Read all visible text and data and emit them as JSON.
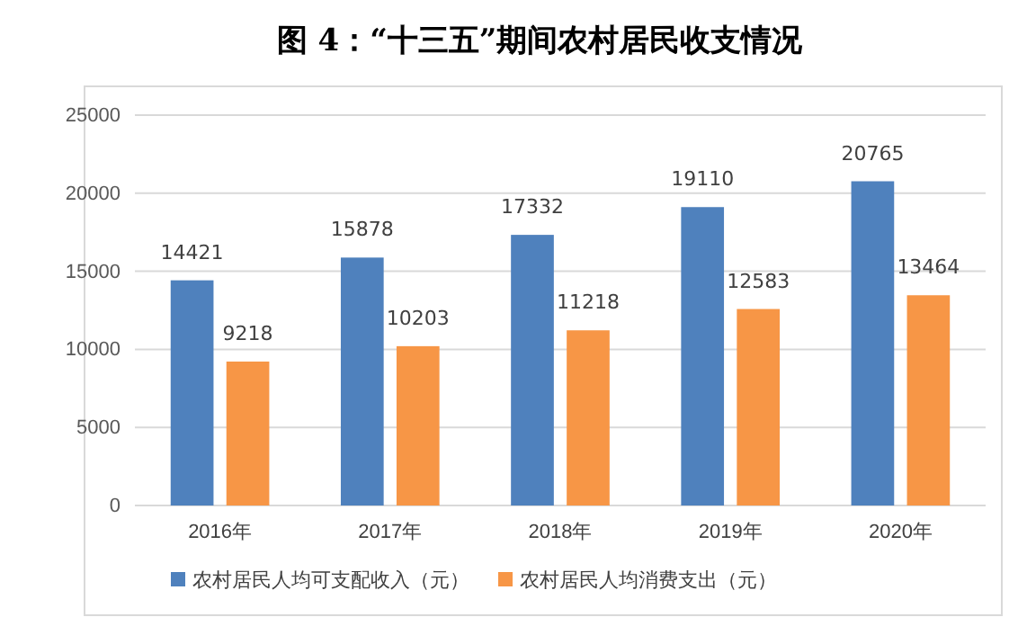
{
  "chart_data": {
    "type": "bar",
    "title": "图 4：“十三五”期间农村居民收支情况",
    "categories": [
      "2016年",
      "2017年",
      "2018年",
      "2019年",
      "2020年"
    ],
    "series": [
      {
        "name": "农村居民人均可支配收入（元）",
        "color": "#4f81bd",
        "values": [
          14421,
          15878,
          17332,
          19110,
          20765
        ]
      },
      {
        "name": "农村居民人均消费支出（元）",
        "color": "#f79646",
        "values": [
          9218,
          10203,
          11218,
          12583,
          13464
        ]
      }
    ],
    "ylim": [
      0,
      25000
    ],
    "yticks": [
      0,
      5000,
      10000,
      15000,
      20000,
      25000
    ],
    "grid": "y",
    "legend": "bottom",
    "data_labels": true
  }
}
